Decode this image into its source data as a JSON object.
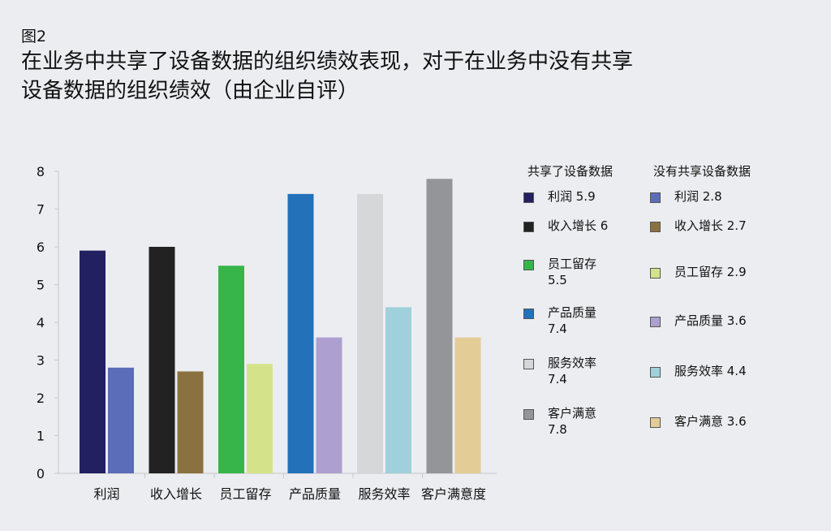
{
  "figure_label": "图2",
  "title_lines": [
    "在业务中共享了设备数据的组织绩效表现，对于在业务中没有共享",
    "设备数据的组织绩效（由企业自评）"
  ],
  "chart_data": {
    "type": "bar",
    "categories": [
      "利润",
      "收入增长",
      "员工留存",
      "产品质量",
      "服务效率",
      "客户满意度"
    ],
    "ylim": [
      0,
      8
    ],
    "yticks": [
      0,
      1,
      2,
      3,
      4,
      5,
      6,
      7,
      8
    ],
    "grid": false,
    "legend_position": "right",
    "series": [
      {
        "name": "共享了设备数据",
        "values": [
          5.9,
          6,
          5.5,
          7.4,
          7.4,
          7.8
        ],
        "colors": [
          "#222060",
          "#222222",
          "#38b54a",
          "#2271b9",
          "#d6d7d9",
          "#939598"
        ]
      },
      {
        "name": "没有共享设备数据",
        "values": [
          2.8,
          2.7,
          2.9,
          3.6,
          4.4,
          3.6
        ],
        "colors": [
          "#5b6cb8",
          "#8a7240",
          "#d4e38a",
          "#ad9fd0",
          "#9fd0db",
          "#e3cc96"
        ]
      }
    ],
    "legend": {
      "shared": [
        {
          "lines": [
            "利润 5.9"
          ]
        },
        {
          "lines": [
            "收入增长 6"
          ]
        },
        {
          "lines": [
            "员工留存",
            "5.5"
          ]
        },
        {
          "lines": [
            "产品质量",
            "7.4"
          ]
        },
        {
          "lines": [
            "服务效率",
            "7.4"
          ]
        },
        {
          "lines": [
            "客户满意",
            "7.8"
          ]
        }
      ],
      "not_shared": [
        {
          "lines": [
            "利润 2.8"
          ]
        },
        {
          "lines": [
            "收入增长 2.7"
          ]
        },
        {
          "lines": [
            "员工留存 2.9"
          ]
        },
        {
          "lines": [
            "产品质量 3.6"
          ]
        },
        {
          "lines": [
            "服务效率 4.4"
          ]
        },
        {
          "lines": [
            "客户满意 3.6"
          ]
        }
      ]
    }
  }
}
